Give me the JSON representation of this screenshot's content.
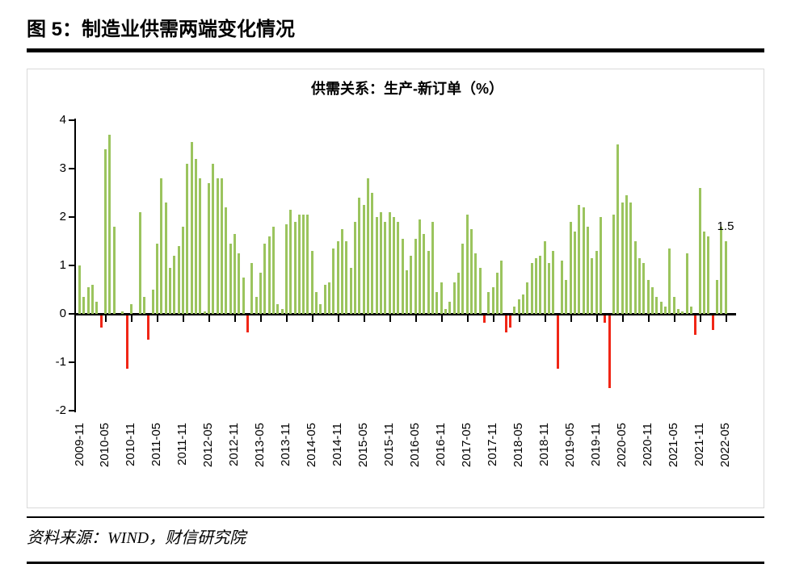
{
  "figure": {
    "title": "图 5：制造业供需两端变化情况",
    "source": "资料来源：WIND，财信研究院"
  },
  "chart_data": {
    "type": "bar",
    "title": "供需关系：生产-新订单（%）",
    "start_month": "2009-11",
    "end_month": "2022-05",
    "x_tick_labels": [
      "2009-11",
      "2010-05",
      "2010-11",
      "2011-05",
      "2011-11",
      "2012-05",
      "2012-11",
      "2013-05",
      "2013-11",
      "2014-05",
      "2014-11",
      "2015-05",
      "2015-11",
      "2016-05",
      "2016-11",
      "2017-05",
      "2017-11",
      "2018-05",
      "2018-11",
      "2019-05",
      "2019-11",
      "2020-05",
      "2020-11",
      "2021-05",
      "2021-11",
      "2022-05"
    ],
    "y_ticks": [
      4,
      3,
      2,
      1,
      0,
      -1,
      -2
    ],
    "ylim": [
      -2,
      4
    ],
    "grid": false,
    "legend": "none",
    "bar_color_positive": "#9bc45e",
    "bar_color_negative": "#f02616",
    "last_value_label": "1.5",
    "values": [
      1.0,
      0.35,
      0.55,
      0.6,
      0.25,
      -0.25,
      3.4,
      3.7,
      1.8,
      0,
      0.05,
      -1.1,
      0.2,
      0,
      2.1,
      0.35,
      -0.5,
      0.5,
      1.45,
      2.8,
      2.3,
      0.95,
      1.2,
      1.4,
      1.8,
      3.1,
      3.55,
      3.2,
      2.8,
      0.05,
      2.7,
      3.1,
      2.8,
      2.8,
      2.2,
      1.45,
      1.65,
      1.25,
      0.75,
      -0.35,
      1.05,
      0.35,
      0.85,
      1.45,
      1.6,
      1.8,
      0.2,
      0.1,
      1.85,
      2.15,
      1.9,
      2.05,
      2.05,
      2.05,
      1.3,
      0.45,
      0.2,
      0.6,
      0.65,
      1.35,
      1.5,
      1.75,
      1.5,
      0.95,
      1.9,
      2.4,
      2.25,
      2.8,
      2.5,
      2.0,
      2.1,
      1.9,
      2.1,
      2.0,
      1.9,
      1.55,
      0.9,
      1.2,
      1.55,
      1.95,
      1.65,
      1.3,
      1.9,
      0.45,
      0.65,
      0.1,
      0.25,
      0.65,
      0.85,
      1.45,
      2.05,
      1.75,
      1.25,
      0.95,
      -0.15,
      0.45,
      0.55,
      0.85,
      1.1,
      -0.35,
      -0.25,
      0.15,
      0.3,
      0.4,
      0.65,
      1.05,
      1.15,
      1.2,
      1.5,
      1.05,
      1.3,
      -1.1,
      1.1,
      0.7,
      1.9,
      1.7,
      2.25,
      2.2,
      1.8,
      1.15,
      1.3,
      2.0,
      -0.15,
      -1.5,
      2.05,
      3.5,
      2.3,
      2.45,
      2.3,
      1.5,
      1.15,
      1.05,
      0.7,
      0.55,
      0.35,
      0.25,
      0.15,
      1.35,
      0.35,
      0.1,
      0.05,
      1.25,
      0.15,
      -0.4,
      2.6,
      1.7,
      1.6,
      -0.3,
      0.7,
      1.8,
      1.5
    ]
  }
}
